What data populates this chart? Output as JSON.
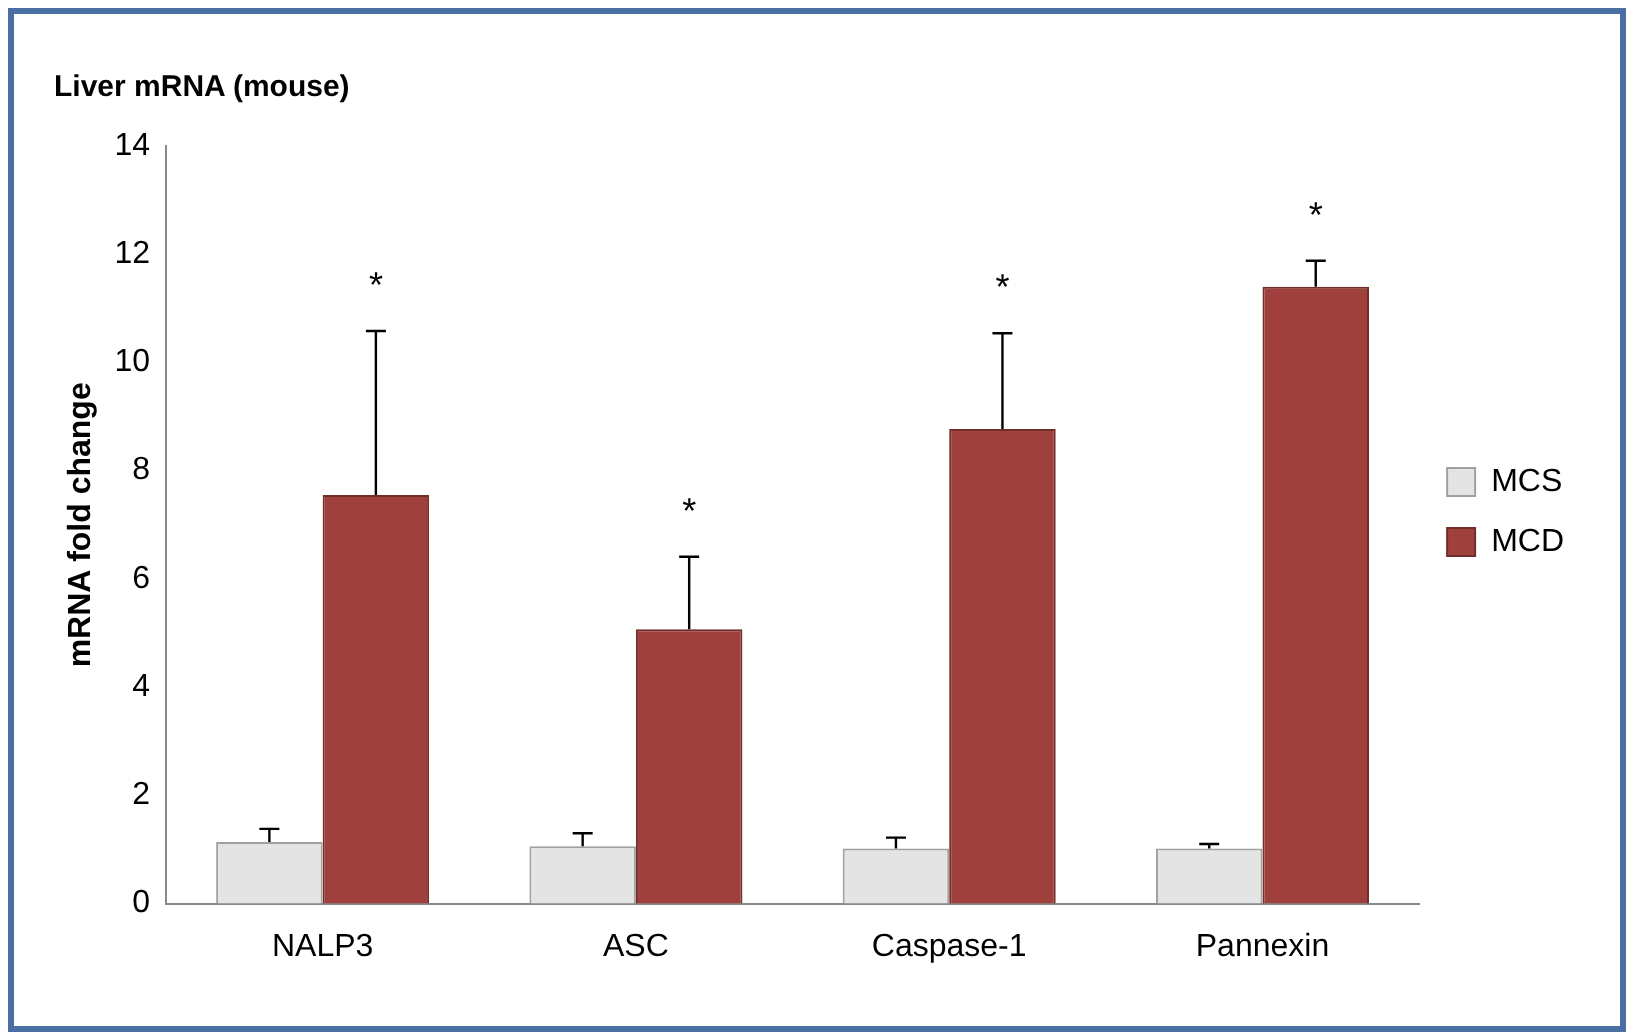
{
  "chart_data": {
    "type": "bar",
    "title": "Liver mRNA (mouse)",
    "ylabel": "mRNA fold change",
    "categories": [
      "NALP3",
      "ASC",
      "Caspase-1",
      "Pannexin"
    ],
    "series": [
      {
        "name": "MCS",
        "color": "#e4e4e4",
        "values": [
          1.14,
          1.06,
          1.02,
          1.02
        ],
        "errors": [
          [
            1.14,
            1.38
          ],
          [
            1.06,
            1.3
          ],
          [
            1.02,
            1.22
          ],
          [
            1.02,
            1.1
          ]
        ]
      },
      {
        "name": "MCD",
        "color": "#a0403c",
        "values": [
          7.55,
          5.07,
          8.77,
          11.4
        ],
        "errors": [
          [
            7.55,
            10.58
          ],
          [
            5.07,
            6.41
          ],
          [
            8.77,
            10.54
          ],
          [
            11.4,
            11.88
          ]
        ]
      }
    ],
    "ylim": [
      0,
      14
    ],
    "yticks": [
      0,
      2,
      4,
      6,
      8,
      10,
      12,
      14
    ],
    "grid": false,
    "legend": "right",
    "annotations": [
      "*",
      "*",
      "*",
      "*"
    ]
  }
}
